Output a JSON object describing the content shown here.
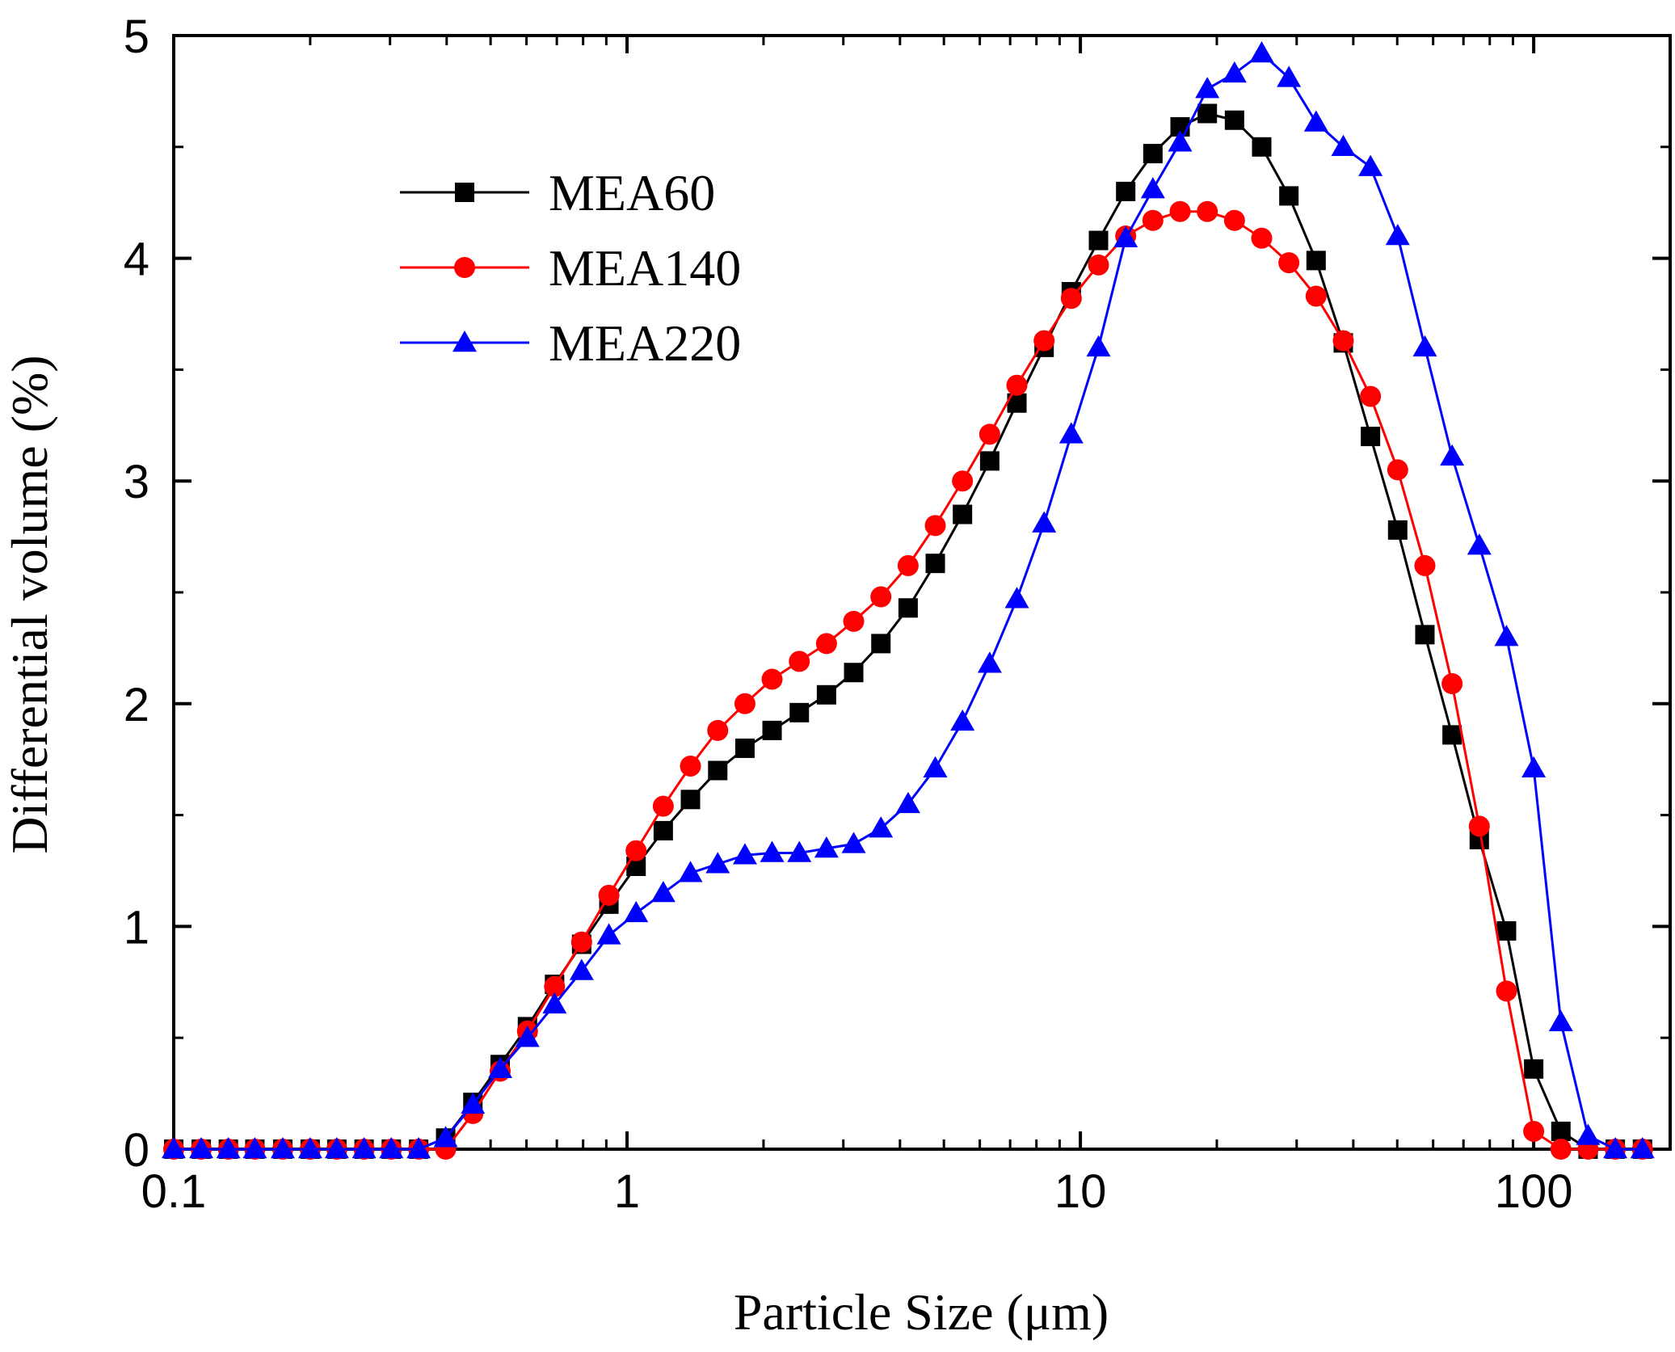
{
  "chart_data": {
    "type": "line",
    "title": "",
    "xlabel": "Particle Size (μm)",
    "ylabel": "Differential volume (%)",
    "xscale": "log",
    "xlim": [
      0.1,
      200
    ],
    "ylim": [
      0,
      5
    ],
    "xticks": [
      0.1,
      1,
      10,
      100
    ],
    "xtick_labels": [
      "0.1",
      "1",
      "10",
      "100"
    ],
    "yticks": [
      0,
      1,
      2,
      3,
      4,
      5
    ],
    "ytick_labels": [
      "0",
      "1",
      "2",
      "3",
      "4",
      "5"
    ],
    "grid": false,
    "legend_position": "top-left",
    "x": [
      0.1,
      0.115,
      0.132,
      0.151,
      0.174,
      0.2,
      0.229,
      0.263,
      0.302,
      0.347,
      0.398,
      0.457,
      0.525,
      0.603,
      0.692,
      0.794,
      0.912,
      1.047,
      1.202,
      1.38,
      1.585,
      1.82,
      2.089,
      2.399,
      2.754,
      3.162,
      3.631,
      4.169,
      4.786,
      5.495,
      6.31,
      7.244,
      8.318,
      9.55,
      10.965,
      12.589,
      14.454,
      16.596,
      19.055,
      21.878,
      25.119,
      28.84,
      33.113,
      38.019,
      43.652,
      50.119,
      57.544,
      66.069,
      75.858,
      87.096,
      100,
      114.815,
      131.826,
      151.356,
      173.78
    ],
    "series": [
      {
        "name": "MEA60",
        "color": "#000000",
        "marker": "square",
        "values": [
          0,
          0,
          0,
          0,
          0,
          0,
          0,
          0,
          0,
          0,
          0.05,
          0.21,
          0.38,
          0.55,
          0.74,
          0.92,
          1.1,
          1.27,
          1.43,
          1.57,
          1.7,
          1.8,
          1.88,
          1.96,
          2.04,
          2.14,
          2.27,
          2.43,
          2.63,
          2.85,
          3.09,
          3.35,
          3.6,
          3.85,
          4.08,
          4.3,
          4.47,
          4.59,
          4.65,
          4.62,
          4.5,
          4.28,
          3.99,
          3.62,
          3.2,
          2.78,
          2.31,
          1.86,
          1.39,
          0.98,
          0.36,
          0.08,
          0,
          0,
          0
        ]
      },
      {
        "name": "MEA140",
        "color": "#ff0000",
        "marker": "circle",
        "values": [
          0,
          0,
          0,
          0,
          0,
          0,
          0,
          0,
          0,
          0,
          0,
          0.16,
          0.35,
          0.53,
          0.73,
          0.93,
          1.14,
          1.34,
          1.54,
          1.72,
          1.88,
          2.0,
          2.11,
          2.19,
          2.27,
          2.37,
          2.48,
          2.62,
          2.8,
          3.0,
          3.21,
          3.43,
          3.63,
          3.82,
          3.97,
          4.1,
          4.17,
          4.21,
          4.21,
          4.17,
          4.09,
          3.98,
          3.83,
          3.63,
          3.38,
          3.05,
          2.62,
          2.09,
          1.45,
          0.71,
          0.08,
          0,
          0,
          0,
          0
        ]
      },
      {
        "name": "MEA220",
        "color": "#0000ff",
        "marker": "triangle",
        "values": [
          0,
          0,
          0,
          0,
          0,
          0,
          0,
          0,
          0,
          0,
          0.05,
          0.2,
          0.36,
          0.5,
          0.65,
          0.8,
          0.96,
          1.06,
          1.15,
          1.24,
          1.28,
          1.32,
          1.33,
          1.33,
          1.35,
          1.37,
          1.44,
          1.55,
          1.71,
          1.92,
          2.18,
          2.47,
          2.81,
          3.21,
          3.6,
          4.09,
          4.31,
          4.52,
          4.76,
          4.83,
          4.92,
          4.81,
          4.61,
          4.5,
          4.41,
          4.1,
          3.6,
          3.11,
          2.71,
          2.3,
          1.71,
          0.57,
          0.06,
          0,
          0
        ]
      }
    ]
  }
}
